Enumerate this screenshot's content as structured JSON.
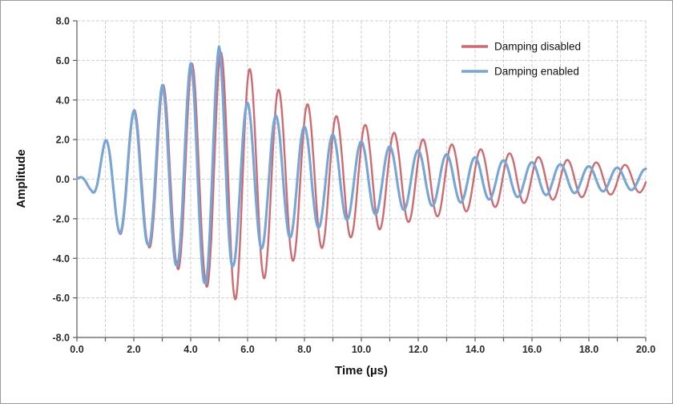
{
  "frame": {
    "background": "#ffffff",
    "border_color": "#9b9b9b"
  },
  "style": {
    "grid_color": "#cfcfcf",
    "axis_color": "#595959",
    "tick_label_color": "#2b2b2b"
  },
  "chart_data": {
    "type": "line",
    "title": "",
    "xlabel": "Time (µs)",
    "ylabel": "Amplitude",
    "xlim": [
      0,
      20
    ],
    "ylim": [
      -8,
      8
    ],
    "grid": true,
    "x_grid_step_us": 1,
    "x_label_step_us": 2,
    "y_grid_step": 2,
    "legend_position": "top-right-inside",
    "x_ticks": [
      "0.0",
      "2.0",
      "4.0",
      "6.0",
      "8.0",
      "10.0",
      "12.0",
      "14.0",
      "16.0",
      "18.0",
      "20.0"
    ],
    "y_ticks": [
      "-8.0",
      "-6.0",
      "-4.0",
      "-2.0",
      "0.0",
      "2.0",
      "4.0",
      "6.0",
      "8.0"
    ],
    "signal_model": "y(t) = envelope(t) * sin(2*pi*f*(t - t0)); envelope linearly interpolated between envelope_points [t_us, amplitude] read from the plot",
    "series": [
      {
        "name": "Damping disabled",
        "color": "#cf6a70",
        "line_width": 2.4,
        "carrier_freq_per_us": 0.985,
        "carrier_t0_us": 0.75,
        "envelope_points": [
          [
            0,
            0
          ],
          [
            0.5,
            0.55
          ],
          [
            1,
            1.95
          ],
          [
            1.5,
            2.75
          ],
          [
            2,
            3.5
          ],
          [
            2.5,
            3.35
          ],
          [
            3,
            4.8
          ],
          [
            3.5,
            4.4
          ],
          [
            4,
            5.9
          ],
          [
            4.5,
            5.3
          ],
          [
            5,
            6.45
          ],
          [
            5.5,
            6.15
          ],
          [
            6,
            5.65
          ],
          [
            6.5,
            5.1
          ],
          [
            7,
            4.6
          ],
          [
            7.5,
            4.2
          ],
          [
            8,
            3.85
          ],
          [
            8.5,
            3.55
          ],
          [
            9,
            3.25
          ],
          [
            9.5,
            3.0
          ],
          [
            10,
            2.8
          ],
          [
            11,
            2.4
          ],
          [
            12,
            2.05
          ],
          [
            13,
            1.8
          ],
          [
            14,
            1.55
          ],
          [
            15,
            1.35
          ],
          [
            16,
            1.15
          ],
          [
            17,
            1.0
          ],
          [
            18,
            0.88
          ],
          [
            19,
            0.75
          ],
          [
            20,
            0.65
          ]
        ]
      },
      {
        "name": "Damping enabled",
        "color": "#76a5d7",
        "line_width": 3.1,
        "carrier_freq_per_us": 1.0,
        "carrier_t0_us": 0.75,
        "envelope_points": [
          [
            0,
            0
          ],
          [
            0.5,
            0.55
          ],
          [
            1,
            1.95
          ],
          [
            1.5,
            2.7
          ],
          [
            2,
            3.45
          ],
          [
            2.5,
            3.3
          ],
          [
            3,
            4.75
          ],
          [
            3.5,
            4.35
          ],
          [
            4,
            5.85
          ],
          [
            4.5,
            5.25
          ],
          [
            5,
            6.7
          ],
          [
            5.5,
            4.35
          ],
          [
            6,
            3.85
          ],
          [
            6.5,
            3.5
          ],
          [
            7,
            3.2
          ],
          [
            7.5,
            2.95
          ],
          [
            8,
            2.65
          ],
          [
            8.5,
            2.45
          ],
          [
            9,
            2.25
          ],
          [
            9.5,
            2.05
          ],
          [
            10,
            1.9
          ],
          [
            11,
            1.65
          ],
          [
            12,
            1.45
          ],
          [
            13,
            1.25
          ],
          [
            14,
            1.1
          ],
          [
            15,
            0.95
          ],
          [
            16,
            0.85
          ],
          [
            17,
            0.75
          ],
          [
            18,
            0.65
          ],
          [
            19,
            0.58
          ],
          [
            20,
            0.52
          ]
        ]
      }
    ]
  }
}
